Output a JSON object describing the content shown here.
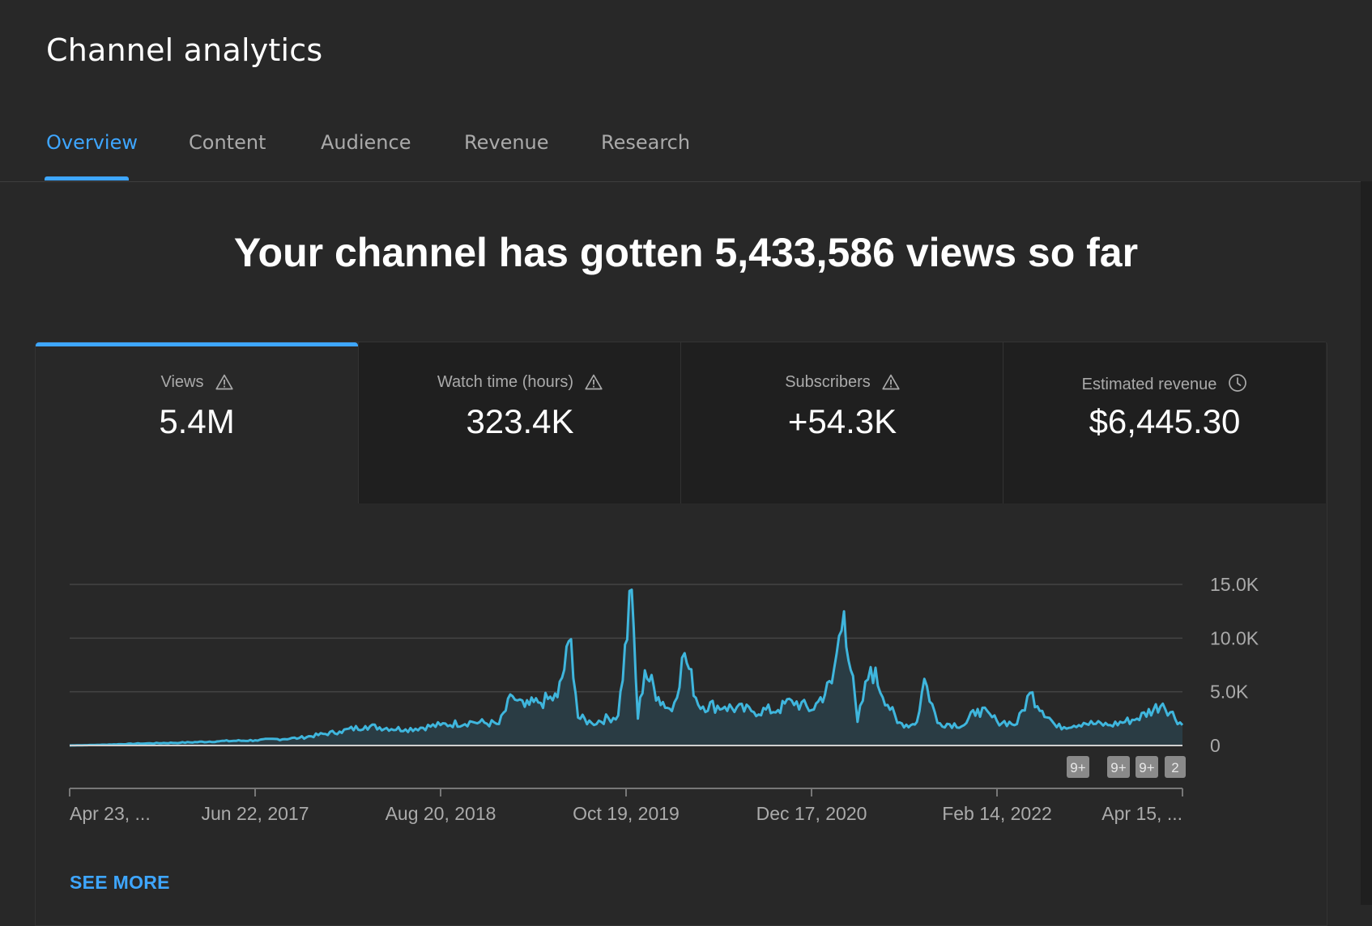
{
  "header": {
    "title": "Channel analytics"
  },
  "tabs": [
    {
      "label": "Overview",
      "active": true
    },
    {
      "label": "Content",
      "active": false
    },
    {
      "label": "Audience",
      "active": false
    },
    {
      "label": "Revenue",
      "active": false
    },
    {
      "label": "Research",
      "active": false
    }
  ],
  "headline": "Your channel has gotten 5,433,586 views so far",
  "metrics": [
    {
      "label": "Views",
      "value": "5.4M",
      "icon": "warning-icon",
      "active": true
    },
    {
      "label": "Watch time (hours)",
      "value": "323.4K",
      "icon": "warning-icon",
      "active": false
    },
    {
      "label": "Subscribers",
      "value": "+54.3K",
      "icon": "warning-icon",
      "active": false
    },
    {
      "label": "Estimated revenue",
      "value": "$6,445.30",
      "icon": "clock-icon",
      "active": false
    }
  ],
  "colors": {
    "accent": "#3ea6ff",
    "line": "#3fb6dd",
    "background": "#282828"
  },
  "chart_data": {
    "type": "area",
    "y_ticks": [
      "0",
      "5.0K",
      "10.0K",
      "15.0K"
    ],
    "ylim": [
      0,
      15000
    ],
    "x_ticks": [
      "Apr 23, ...",
      "Jun 22, 2017",
      "Aug 20, 2018",
      "Oct 19, 2019",
      "Dec 17, 2020",
      "Feb 14, 2022",
      "Apr 15, ..."
    ],
    "grid": true,
    "series": [
      {
        "x": [
          "2016-04-23",
          "2016-07-01",
          "2016-10-01",
          "2017-01-01",
          "2017-04-01",
          "2017-06-22",
          "2017-10-01",
          "2018-01-01",
          "2018-03-01",
          "2018-06-01",
          "2018-08-20",
          "2018-11-01",
          "2019-01-01",
          "2019-02-01",
          "2019-03-01",
          "2019-04-01",
          "2019-05-15",
          "2019-06-15",
          "2019-07-01",
          "2019-08-01",
          "2019-10-01",
          "2019-11-01",
          "2019-11-15",
          "2019-12-01",
          "2020-01-01",
          "2020-02-01",
          "2020-03-01",
          "2020-04-01",
          "2020-06-01",
          "2020-08-01",
          "2020-10-01",
          "2020-11-01",
          "2020-12-17",
          "2021-01-01",
          "2021-02-01",
          "2021-03-01",
          "2021-04-01",
          "2021-05-01",
          "2021-07-01",
          "2021-08-01",
          "2021-08-15",
          "2021-09-01",
          "2021-10-01",
          "2021-12-01",
          "2022-01-01",
          "2022-02-14",
          "2022-04-01",
          "2022-05-01",
          "2022-07-01",
          "2022-09-01",
          "2022-11-01",
          "2023-01-01",
          "2023-03-01",
          "2023-04-15"
        ],
        "y": [
          0,
          60,
          180,
          260,
          400,
          480,
          700,
          1300,
          1800,
          1500,
          1900,
          2200,
          2000,
          4600,
          3600,
          4000,
          4500,
          9900,
          2600,
          2100,
          2800,
          14500,
          2500,
          7000,
          4500,
          3200,
          8600,
          3800,
          3600,
          3200,
          3300,
          4200,
          3300,
          4100,
          5800,
          12500,
          2200,
          7300,
          2100,
          1900,
          2200,
          6200,
          2100,
          1900,
          3400,
          2300,
          2000,
          4900,
          1700,
          2100,
          1900,
          2500,
          3900,
          1900
        ]
      }
    ],
    "badges": [
      "9+",
      "9+",
      "9+",
      "2"
    ]
  },
  "see_more": "SEE MORE"
}
